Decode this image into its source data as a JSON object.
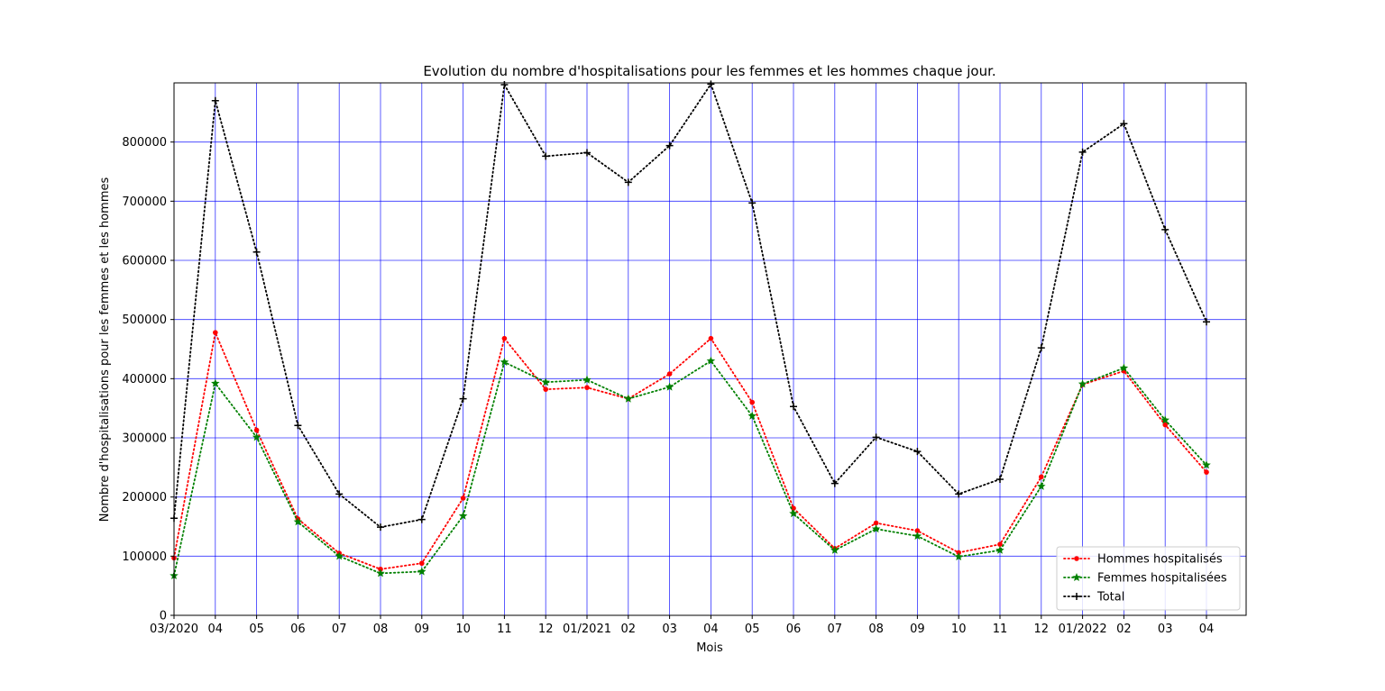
{
  "chart_data": {
    "type": "line",
    "title": "Evolution du nombre d'hospitalisations pour les femmes et les hommes chaque jour.",
    "xlabel": "Mois",
    "ylabel": "Nombre d'hospitalisations pour les femmes et les hommes",
    "categories": [
      "03/2020",
      "04",
      "05",
      "06",
      "07",
      "08",
      "09",
      "10",
      "11",
      "12",
      "01/2021",
      "02",
      "03",
      "04",
      "05",
      "06",
      "07",
      "08",
      "09",
      "10",
      "11",
      "12",
      "01/2022",
      "02",
      "03",
      "04"
    ],
    "ylim": [
      0,
      900000
    ],
    "yticks": [
      0,
      100000,
      200000,
      300000,
      400000,
      500000,
      600000,
      700000,
      800000
    ],
    "ytick_labels": [
      "0",
      "100000",
      "200000",
      "300000",
      "400000",
      "500000",
      "600000",
      "700000",
      "800000"
    ],
    "grid": true,
    "legend_position": "lower-right",
    "series": [
      {
        "name": "Hommes hospitalisés",
        "color": "#ff0000",
        "marker": "dot",
        "values": [
          97000,
          478000,
          313000,
          163000,
          105000,
          78000,
          88000,
          198000,
          468000,
          382000,
          385000,
          366000,
          408000,
          468000,
          360000,
          181000,
          113000,
          156000,
          143000,
          106000,
          120000,
          234000,
          390000,
          413000,
          322000,
          242000
        ]
      },
      {
        "name": "Femmes hospitalisées",
        "color": "#008000",
        "marker": "star",
        "values": [
          67000,
          392000,
          301000,
          158000,
          100000,
          71000,
          74000,
          168000,
          428000,
          394000,
          398000,
          366000,
          386000,
          430000,
          337000,
          172000,
          110000,
          146000,
          134000,
          99000,
          110000,
          218000,
          391000,
          418000,
          330000,
          254000
        ]
      },
      {
        "name": "Total",
        "color": "#000000",
        "marker": "plus",
        "values": [
          164000,
          870000,
          614000,
          321000,
          205000,
          149000,
          162000,
          366000,
          897000,
          776000,
          782000,
          732000,
          794000,
          898000,
          697000,
          353000,
          223000,
          301000,
          277000,
          205000,
          230000,
          452000,
          783000,
          831000,
          652000,
          496000
        ]
      }
    ]
  }
}
